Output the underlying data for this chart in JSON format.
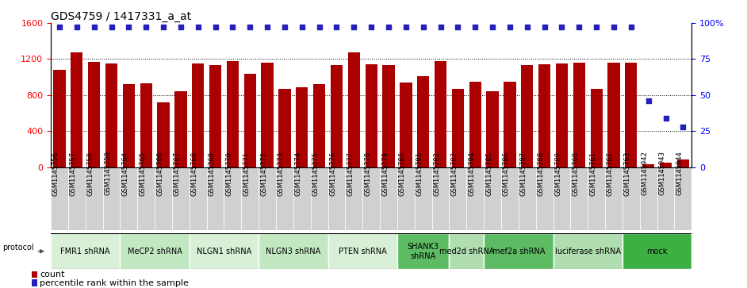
{
  "title": "GDS4759 / 1417331_a_at",
  "samples": [
    "GSM1145756",
    "GSM1145757",
    "GSM1145758",
    "GSM1145759",
    "GSM1145764",
    "GSM1145765",
    "GSM1145766",
    "GSM1145767",
    "GSM1145768",
    "GSM1145769",
    "GSM1145770",
    "GSM1145771",
    "GSM1145772",
    "GSM1145773",
    "GSM1145774",
    "GSM1145775",
    "GSM1145776",
    "GSM1145777",
    "GSM1145778",
    "GSM1145779",
    "GSM1145780",
    "GSM1145781",
    "GSM1145782",
    "GSM1145783",
    "GSM1145784",
    "GSM1145785",
    "GSM1145786",
    "GSM1145787",
    "GSM1145788",
    "GSM1145789",
    "GSM1145760",
    "GSM1145761",
    "GSM1145762",
    "GSM1145763",
    "GSM1145942",
    "GSM1145943",
    "GSM1145944"
  ],
  "counts": [
    1080,
    1270,
    1165,
    1155,
    920,
    930,
    720,
    840,
    1150,
    1130,
    1175,
    1040,
    1160,
    870,
    890,
    920,
    1130,
    1270,
    1140,
    1130,
    940,
    1010,
    1175,
    870,
    950,
    840,
    950,
    1130,
    1140,
    1150,
    1160,
    870,
    1160,
    1160,
    30,
    50,
    80
  ],
  "percentiles": [
    97,
    97,
    97,
    97,
    97,
    97,
    97,
    97,
    97,
    97,
    97,
    97,
    97,
    97,
    97,
    97,
    97,
    97,
    97,
    97,
    97,
    97,
    97,
    97,
    97,
    97,
    97,
    97,
    97,
    97,
    97,
    97,
    97,
    97,
    46,
    34,
    28
  ],
  "protocols": [
    {
      "label": "FMR1 shRNA",
      "start": 0,
      "end": 4,
      "color": "#d8f0d8"
    },
    {
      "label": "MeCP2 shRNA",
      "start": 4,
      "end": 8,
      "color": "#c2e8c2"
    },
    {
      "label": "NLGN1 shRNA",
      "start": 8,
      "end": 12,
      "color": "#d8f0d8"
    },
    {
      "label": "NLGN3 shRNA",
      "start": 12,
      "end": 16,
      "color": "#c2e8c2"
    },
    {
      "label": "PTEN shRNA",
      "start": 16,
      "end": 20,
      "color": "#d8f0d8"
    },
    {
      "label": "SHANK3\nshRNA",
      "start": 20,
      "end": 23,
      "color": "#5dbb63"
    },
    {
      "label": "med2d shRNA",
      "start": 23,
      "end": 25,
      "color": "#b0deb0"
    },
    {
      "label": "mef2a shRNA",
      "start": 25,
      "end": 29,
      "color": "#5dbb63"
    },
    {
      "label": "luciferase shRNA",
      "start": 29,
      "end": 33,
      "color": "#b0deb0"
    },
    {
      "label": "mock",
      "start": 33,
      "end": 37,
      "color": "#3cb043"
    }
  ],
  "bar_color": "#aa0000",
  "dot_color": "#2222bb",
  "left_ylim": [
    0,
    1600
  ],
  "right_ylim": [
    0,
    100
  ],
  "left_yticks": [
    0,
    400,
    800,
    1200,
    1600
  ],
  "right_yticks": [
    0,
    25,
    50,
    75,
    100
  ],
  "grid_values": [
    400,
    800,
    1200
  ],
  "title_fontsize": 10,
  "xtick_fontsize": 6,
  "ytick_fontsize": 8,
  "protocol_fontsize": 7,
  "legend_fontsize": 8
}
